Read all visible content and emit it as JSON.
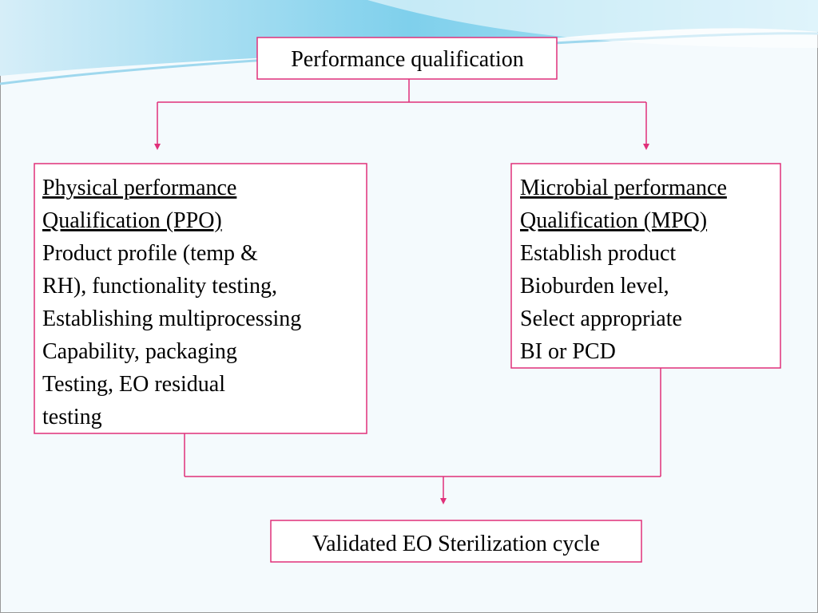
{
  "nodes": [
    {
      "label": "Performance qualification"
    },
    {
      "heading": [
        "Physical performance",
        "Qualification (PPO)"
      ],
      "lines": [
        "Product profile (temp &",
        "RH), functionality testing,",
        "Establishing multiprocessing",
        "Capability, packaging",
        "Testing, EO residual",
        "testing"
      ]
    },
    {
      "heading": [
        "Microbial performance",
        "Qualification (MPQ)"
      ],
      "lines": [
        "Establish product",
        "Bioburden level,",
        "Select appropriate",
        "BI or PCD"
      ]
    },
    {
      "label": "Validated EO Sterilization cycle"
    }
  ]
}
